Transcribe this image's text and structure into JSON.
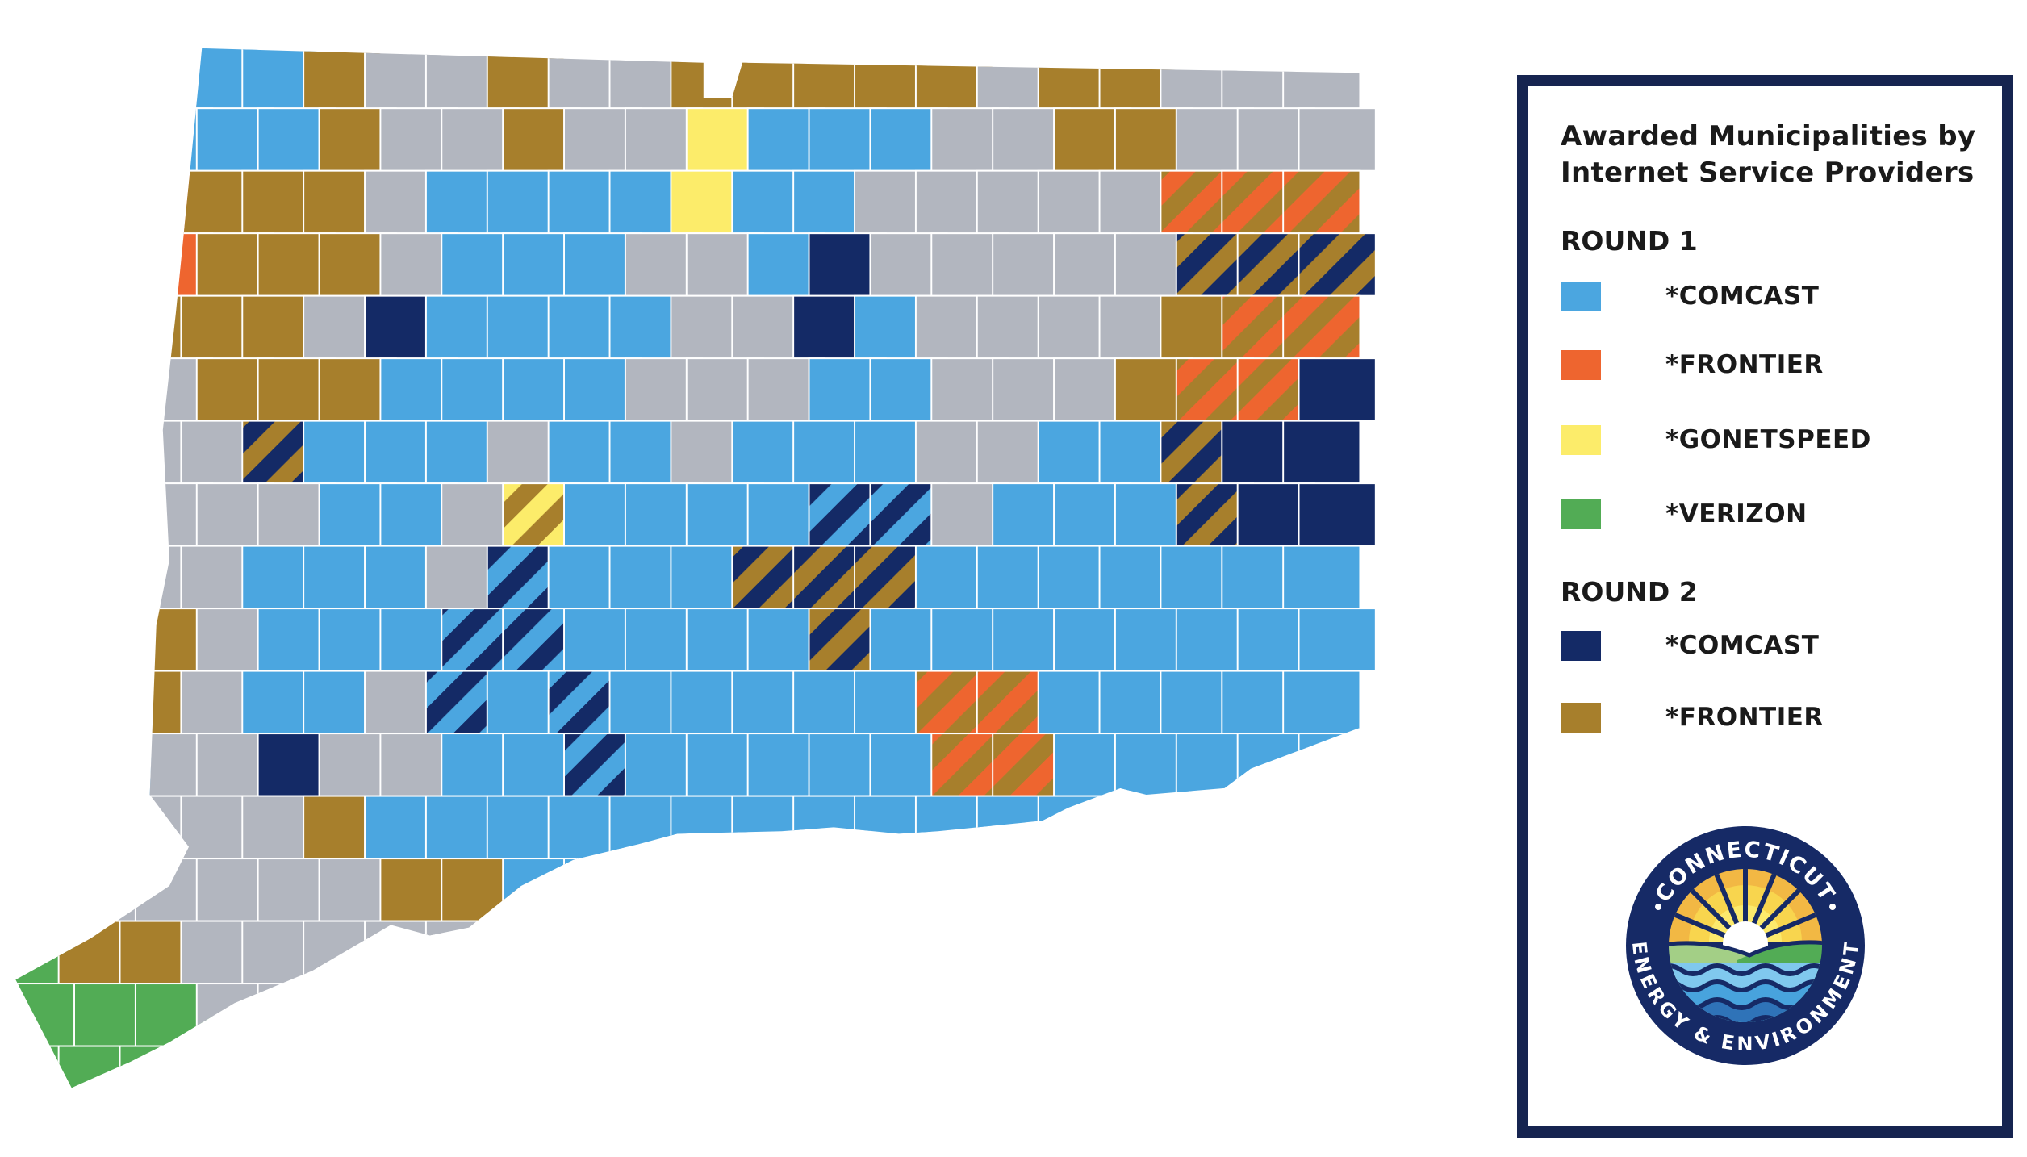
{
  "legend": {
    "title_line1": "Awarded Municipalities by",
    "title_line2": "Internet Service  Providers",
    "rounds": [
      {
        "label": "ROUND 1",
        "items": [
          {
            "label": "*COMCAST",
            "color": "#4ba6e0"
          },
          {
            "label": "*FRONTIER",
            "color": "#ee652f"
          },
          {
            "label": "*GONETSPEED",
            "color": "#fcec6a"
          },
          {
            "label": "*VERIZON",
            "color": "#52ac55"
          }
        ]
      },
      {
        "label": "ROUND 2",
        "items": [
          {
            "label": "*COMCAST",
            "color": "#142a66"
          },
          {
            "label": "*FRONTIER",
            "color": "#a77f2c"
          }
        ]
      }
    ]
  },
  "colors": {
    "not_awarded": "#b2b6bf",
    "border": "#ffffff",
    "legend_frame": "#162450"
  },
  "logo": {
    "top_text": "CONNECTICUT",
    "bottom_text": "ENERGY & ENVIRONMENT"
  }
}
